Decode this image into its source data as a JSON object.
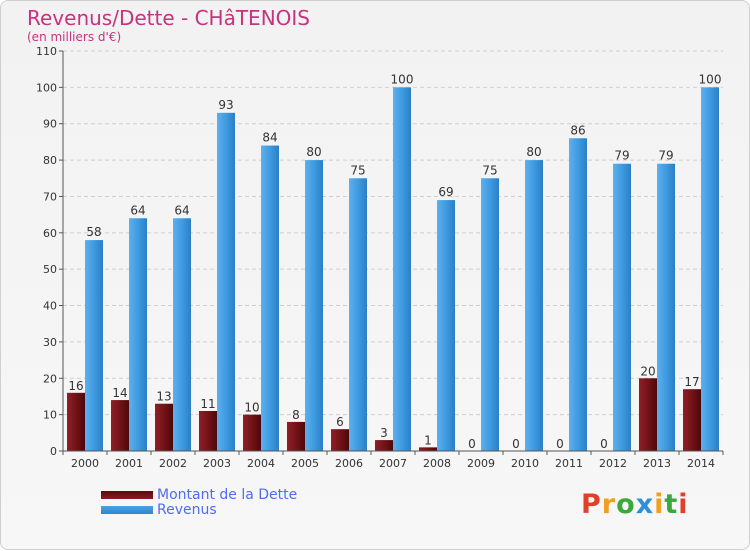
{
  "title": "Revenus/Dette - CHâTENOIS",
  "subtitle": "(en milliers d'€)",
  "logo": "Proxiti",
  "colors": {
    "dette": "#7a1418",
    "revenus": "#3d98de",
    "title": "#c8327e",
    "legend_text": "#4f6cf0"
  },
  "chart_data": {
    "type": "bar",
    "categories": [
      "2000",
      "2001",
      "2002",
      "2003",
      "2004",
      "2005",
      "2006",
      "2007",
      "2008",
      "2009",
      "2010",
      "2011",
      "2012",
      "2013",
      "2014"
    ],
    "series": [
      {
        "name": "Montant de la Dette",
        "values": [
          16,
          14,
          13,
          11,
          10,
          8,
          6,
          3,
          1,
          0,
          0,
          0,
          0,
          20,
          17
        ]
      },
      {
        "name": "Revenus",
        "values": [
          58,
          64,
          64,
          93,
          84,
          80,
          75,
          100,
          69,
          75,
          80,
          86,
          79,
          79,
          100
        ]
      }
    ],
    "y_ticks": [
      "0",
      "10",
      "20",
      "30",
      "40",
      "50",
      "60",
      "70",
      "80",
      "90",
      "100",
      "110"
    ],
    "ylim": [
      0,
      110
    ],
    "grid": true,
    "legend_position": "bottom-left"
  }
}
